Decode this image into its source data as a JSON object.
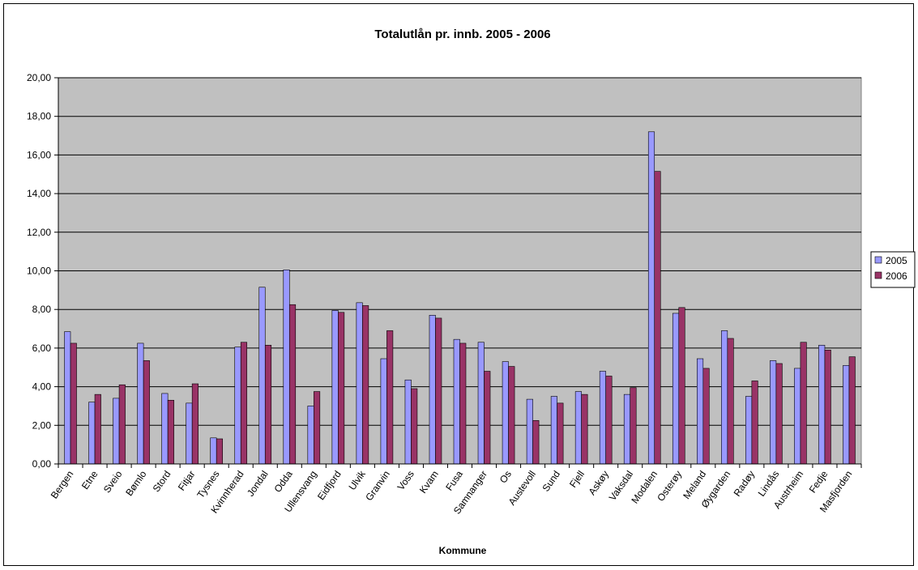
{
  "chart_data": {
    "type": "bar",
    "title": "Totalutlån pr. innb. 2005 - 2006",
    "xlabel": "Kommune",
    "ylabel": "",
    "ylim": [
      0,
      20
    ],
    "yticks": [
      "0,00",
      "2,00",
      "4,00",
      "6,00",
      "8,00",
      "10,00",
      "12,00",
      "14,00",
      "16,00",
      "18,00",
      "20,00"
    ],
    "grid": true,
    "legend_position": "right",
    "plot_background": "#C0C0C0",
    "categories": [
      "Bergen",
      "Etne",
      "Sveio",
      "Bømlo",
      "Stord",
      "Fitjar",
      "Tysnes",
      "Kvinnherad",
      "Jondal",
      "Odda",
      "Ullensvang",
      "Eidfjord",
      "Ulvik",
      "Granvin",
      "Voss",
      "Kvam",
      "Fusa",
      "Samnanger",
      "Os",
      "Austevoll",
      "Sund",
      "Fjell",
      "Askøy",
      "Vaksdal",
      "Modalen",
      "Osterøy",
      "Meland",
      "Øygarden",
      "Radøy",
      "Lindås",
      "Austrheim",
      "Fedje",
      "Masfjorden"
    ],
    "series": [
      {
        "name": "2005",
        "color": "#9999FF",
        "values": [
          6.85,
          3.2,
          3.4,
          6.25,
          3.65,
          3.15,
          1.35,
          6.05,
          9.15,
          10.05,
          3.0,
          7.95,
          8.35,
          5.45,
          4.35,
          7.7,
          6.45,
          6.3,
          5.3,
          3.35,
          3.5,
          3.75,
          4.8,
          3.6,
          17.2,
          7.8,
          5.45,
          6.9,
          3.5,
          5.35,
          4.95,
          6.15,
          5.1
        ]
      },
      {
        "name": "2006",
        "color": "#993366",
        "values": [
          6.25,
          3.6,
          4.1,
          5.35,
          3.3,
          4.15,
          1.3,
          6.3,
          6.15,
          8.25,
          3.75,
          7.85,
          8.2,
          6.9,
          3.9,
          7.55,
          6.25,
          4.8,
          5.05,
          2.25,
          3.15,
          3.6,
          4.55,
          3.95,
          15.15,
          8.1,
          4.95,
          6.5,
          4.3,
          5.2,
          6.3,
          5.9,
          5.55
        ]
      }
    ]
  }
}
